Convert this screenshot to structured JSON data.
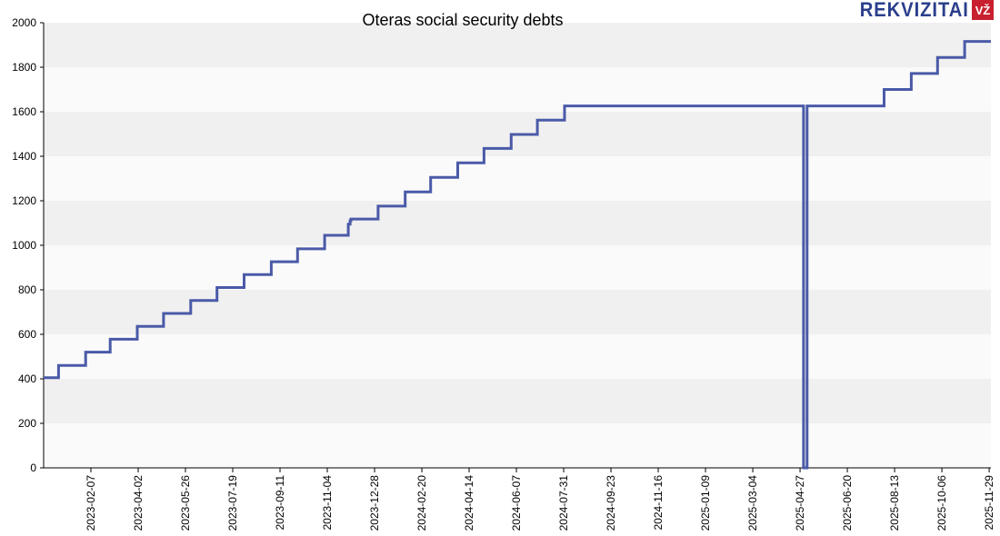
{
  "logo": {
    "text": "REKVIZITAI",
    "badge": "VŽ"
  },
  "colors": {
    "line": "#4a5aa8",
    "band_dark": "#f0f0f0",
    "band_light": "#fafafa",
    "axis": "#000000"
  },
  "chart_data": {
    "type": "line",
    "title": "Oteras social security debts",
    "xlabel": "",
    "ylabel": "",
    "ylim": [
      0,
      2000
    ],
    "yticks": [
      0,
      200,
      400,
      600,
      800,
      1000,
      1200,
      1400,
      1600,
      1800,
      2000
    ],
    "xlim": [
      "2022-12-15",
      "2025-12-01"
    ],
    "xticks": [
      "2023-02-07",
      "2023-04-02",
      "2023-05-26",
      "2023-07-19",
      "2023-09-11",
      "2023-11-04",
      "2023-12-28",
      "2024-02-20",
      "2024-04-14",
      "2024-06-07",
      "2024-07-31",
      "2024-09-23",
      "2024-11-16",
      "2025-01-09",
      "2025-03-04",
      "2025-04-27",
      "2025-06-20",
      "2025-08-13",
      "2025-10-06",
      "2025-11-29"
    ],
    "grid": "horizontal bands",
    "legend": "none",
    "series": [
      {
        "step": true,
        "points": [
          [
            "2022-12-15",
            405
          ],
          [
            "2023-01-01",
            460
          ],
          [
            "2023-02-01",
            520
          ],
          [
            "2023-03-01",
            578
          ],
          [
            "2023-04-01",
            636
          ],
          [
            "2023-05-01",
            694
          ],
          [
            "2023-06-01",
            752
          ],
          [
            "2023-07-01",
            810
          ],
          [
            "2023-08-01",
            868
          ],
          [
            "2023-09-01",
            926
          ],
          [
            "2023-10-01",
            984
          ],
          [
            "2023-11-01",
            1045
          ],
          [
            "2023-11-28",
            1095
          ],
          [
            "2023-11-30",
            1110
          ],
          [
            "2023-12-01",
            1118
          ],
          [
            "2024-01-01",
            1176
          ],
          [
            "2024-02-01",
            1240
          ],
          [
            "2024-03-01",
            1305
          ],
          [
            "2024-04-01",
            1370
          ],
          [
            "2024-05-01",
            1435
          ],
          [
            "2024-06-01",
            1498
          ],
          [
            "2024-07-01",
            1562
          ],
          [
            "2024-08-01",
            1626
          ],
          [
            "2025-05-01",
            0
          ],
          [
            "2025-05-05",
            1626
          ],
          [
            "2025-08-01",
            1700
          ],
          [
            "2025-09-01",
            1772
          ],
          [
            "2025-10-01",
            1844
          ],
          [
            "2025-11-01",
            1916
          ],
          [
            "2025-12-01",
            1916
          ]
        ]
      }
    ]
  }
}
